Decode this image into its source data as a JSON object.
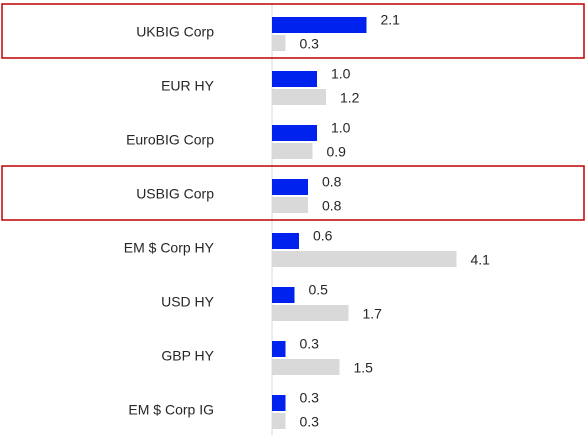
{
  "chart_data": {
    "type": "bar",
    "orientation": "horizontal",
    "categories": [
      "UKBIG Corp",
      "EUR HY",
      "EuroBIG Corp",
      "USBIG Corp",
      "EM $ Corp HY",
      "USD HY",
      "GBP HY",
      "EM $ Corp IG"
    ],
    "series": [
      {
        "color": "#0022ee",
        "values": [
          2.1,
          1.0,
          1.0,
          0.8,
          0.6,
          0.5,
          0.3,
          0.3
        ],
        "value_labels": [
          "2.1",
          "1.0",
          "1.0",
          "0.8",
          "0.6",
          "0.5",
          "0.3",
          "0.3"
        ]
      },
      {
        "color": "#d9d9d9",
        "values": [
          0.3,
          1.2,
          0.9,
          0.8,
          4.1,
          1.7,
          1.5,
          0.3
        ],
        "value_labels": [
          "0.3",
          "1.2",
          "0.9",
          "0.8",
          "4.1",
          "1.7",
          "1.5",
          "0.3"
        ]
      }
    ],
    "highlighted_categories": [
      0,
      3
    ],
    "highlight_color": "#c00000"
  }
}
